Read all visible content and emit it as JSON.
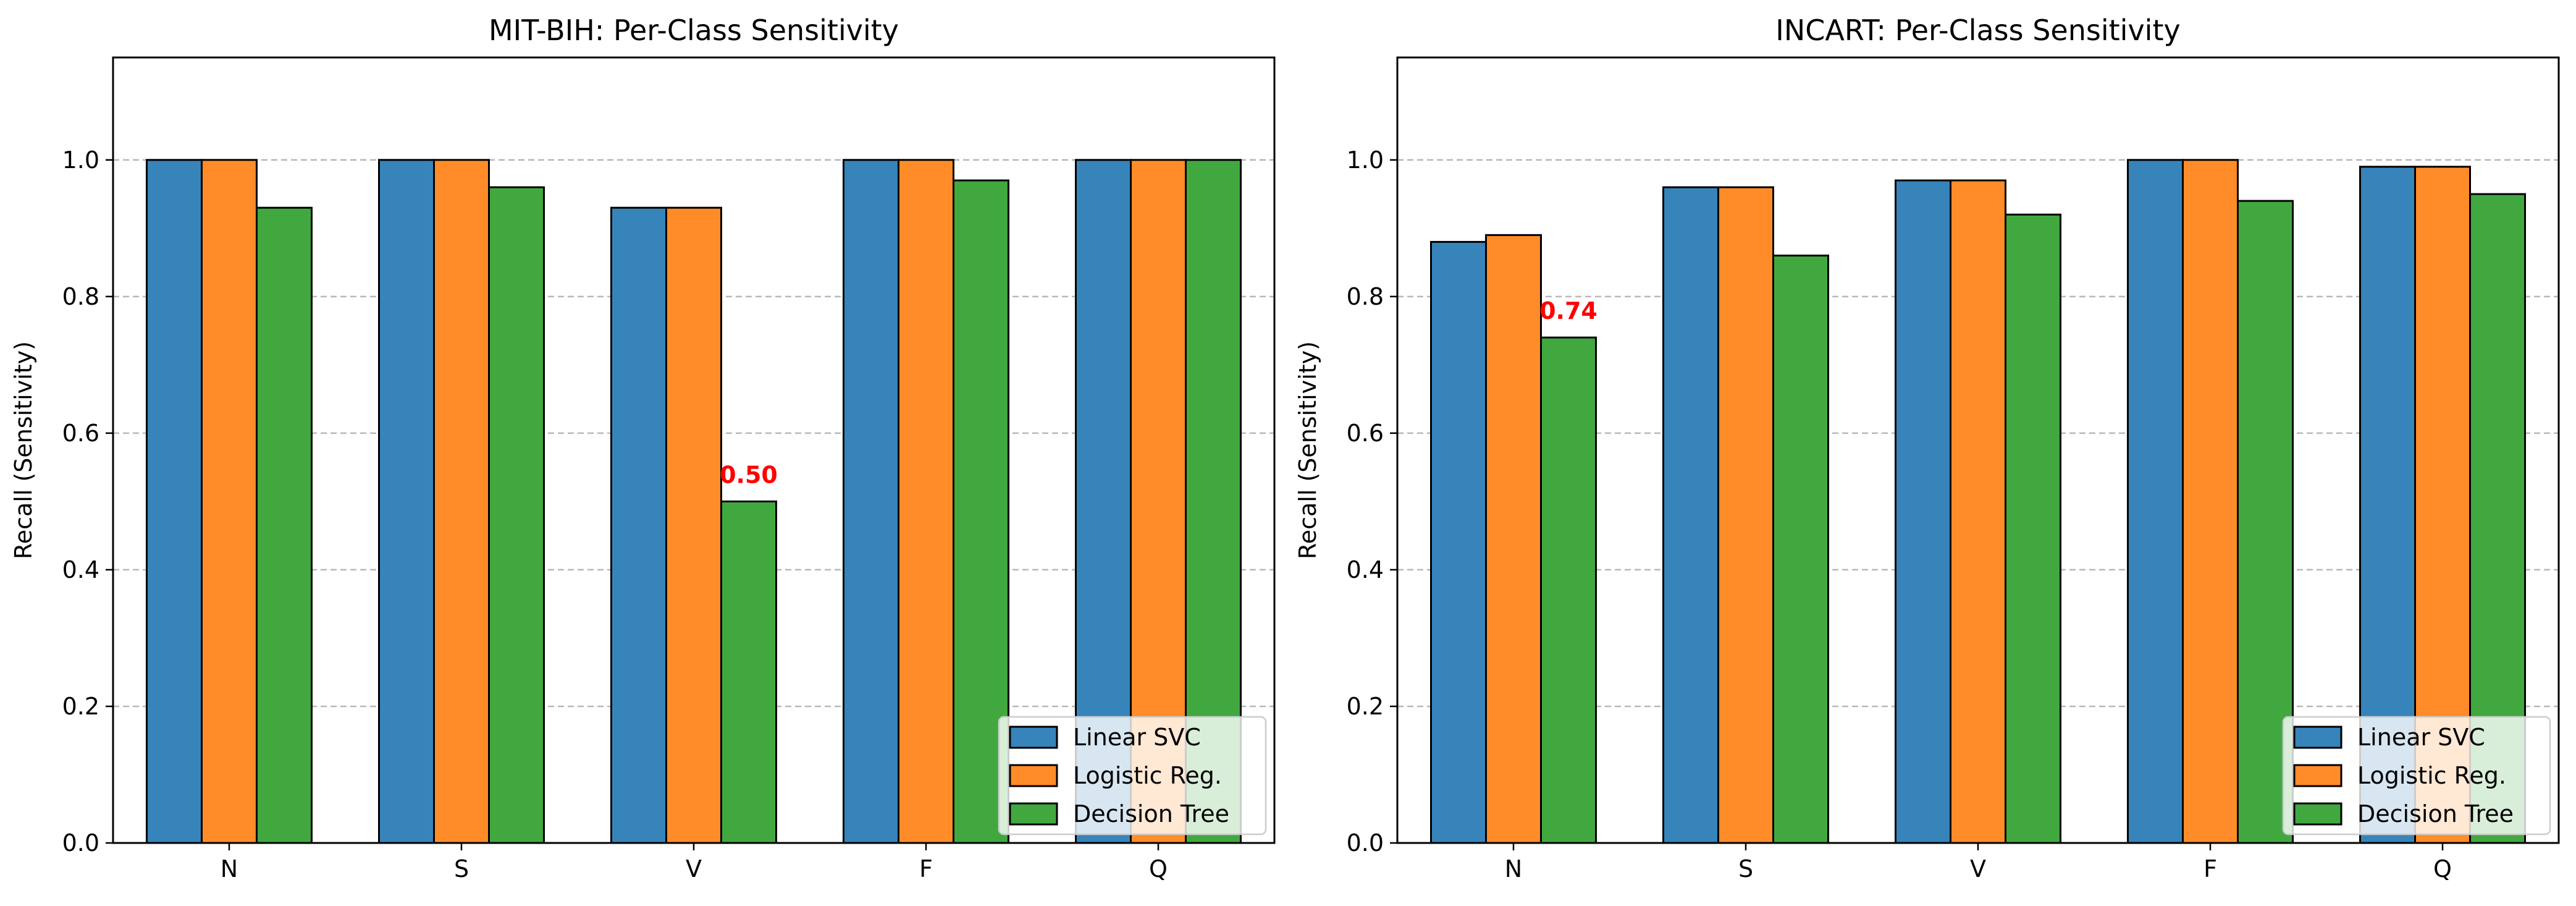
{
  "chart_data": [
    {
      "type": "bar",
      "title": "MIT-BIH: Per-Class Sensitivity",
      "xlabel": "",
      "ylabel": "Recall (Sensitivity)",
      "ylim": [
        0,
        1.15
      ],
      "yticks": [
        "0.0",
        "0.2",
        "0.4",
        "0.6",
        "0.8",
        "1.0"
      ],
      "grid": "y-dashed",
      "legend": "lower-right",
      "categories": [
        "N",
        "S",
        "V",
        "F",
        "Q"
      ],
      "series": [
        {
          "name": "Linear SVC",
          "color": "#3784bb",
          "values": [
            1.0,
            1.0,
            0.93,
            1.0,
            1.0
          ]
        },
        {
          "name": "Logistic Reg.",
          "color": "#ff8c28",
          "values": [
            1.0,
            1.0,
            0.93,
            1.0,
            1.0
          ]
        },
        {
          "name": "Decision Tree",
          "color": "#41a840",
          "values": [
            0.93,
            0.96,
            0.5,
            0.97,
            1.0
          ]
        }
      ],
      "annotations": [
        {
          "text": "0.50",
          "category": "V",
          "value": 0.5,
          "color": "#ff0000"
        }
      ]
    },
    {
      "type": "bar",
      "title": "INCART: Per-Class Sensitivity",
      "xlabel": "",
      "ylabel": "Recall (Sensitivity)",
      "ylim": [
        0,
        1.15
      ],
      "yticks": [
        "0.0",
        "0.2",
        "0.4",
        "0.6",
        "0.8",
        "1.0"
      ],
      "grid": "y-dashed",
      "legend": "lower-right",
      "categories": [
        "N",
        "S",
        "V",
        "F",
        "Q"
      ],
      "series": [
        {
          "name": "Linear SVC",
          "color": "#3784bb",
          "values": [
            0.88,
            0.96,
            0.97,
            1.0,
            0.99
          ]
        },
        {
          "name": "Logistic Reg.",
          "color": "#ff8c28",
          "values": [
            0.89,
            0.96,
            0.97,
            1.0,
            0.99
          ]
        },
        {
          "name": "Decision Tree",
          "color": "#41a840",
          "values": [
            0.74,
            0.86,
            0.92,
            0.94,
            0.95
          ]
        }
      ],
      "annotations": [
        {
          "text": "0.74",
          "category": "N",
          "value": 0.74,
          "color": "#ff0000"
        }
      ]
    }
  ]
}
